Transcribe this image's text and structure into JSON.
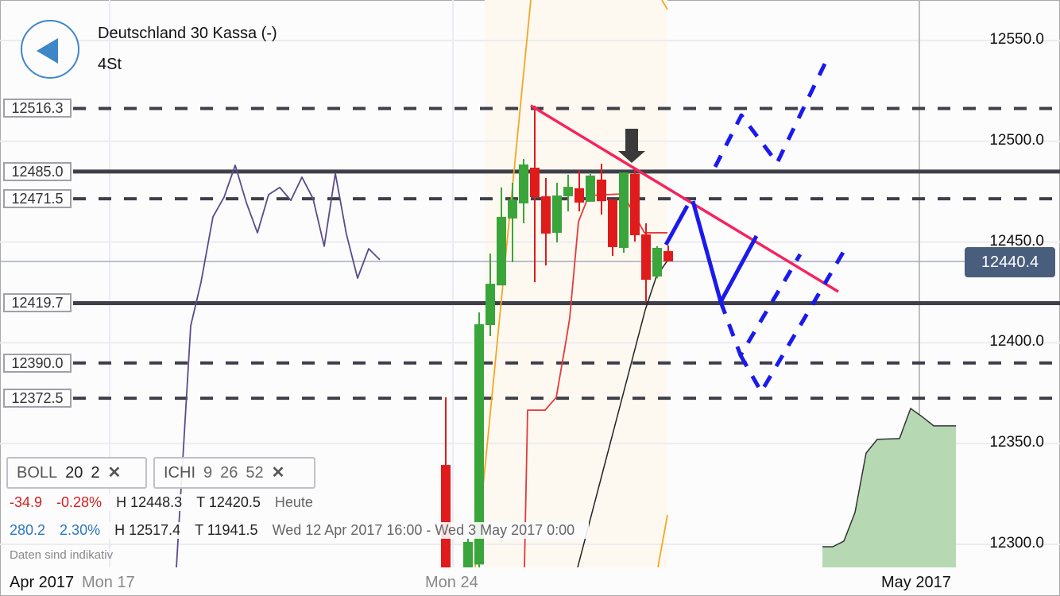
{
  "header": {
    "title": "Deutschland 30 Kassa (-)",
    "timeframe": "4St",
    "back_icon": "back-triangle-icon"
  },
  "colors": {
    "up": "#3aa53a",
    "down": "#e01b1b",
    "trend": "#f5235f",
    "drawing": "#1a1aee",
    "level": "#3f3f4a",
    "boll": "#f5a623",
    "tenkan": "#e5393b",
    "chikou": "#5b4a8a",
    "cloud": "#b6d9b3",
    "price_badge": "#495d7d"
  },
  "chart_data": {
    "type": "candlestick",
    "y_axis": {
      "ticks": [
        "12550.0",
        "12500.0",
        "12450.0",
        "12400.0",
        "12350.0",
        "12300.0"
      ],
      "tick_values": [
        12550,
        12500,
        12450,
        12400,
        12350,
        12300
      ],
      "range": [
        12281,
        12570
      ],
      "grid": true
    },
    "x_axis": {
      "labels": [
        "Apr 2017",
        "Mon 17",
        "Mon 24",
        "May 2017"
      ]
    },
    "current_price": "12440.4",
    "candles": [
      {
        "o": 12339.4,
        "h": 12373.0,
        "l": 12270.0,
        "c": 12280.0
      },
      {
        "o": 12270.0,
        "h": 12303.0,
        "l": 12265.0,
        "c": 12301.2
      },
      {
        "o": 12290.0,
        "h": 12415.1,
        "l": 12285.0,
        "c": 12409.2
      },
      {
        "o": 12408.8,
        "h": 12444.3,
        "l": 12403.3,
        "c": 12429.3
      },
      {
        "o": 12428.5,
        "h": 12477.1,
        "l": 12428.5,
        "c": 12462.5
      },
      {
        "o": 12461.7,
        "h": 12479.4,
        "l": 12440.0,
        "c": 12471.1
      },
      {
        "o": 12469.2,
        "h": 12491.2,
        "l": 12459.3,
        "c": 12488.5
      },
      {
        "o": 12486.9,
        "h": 12517.7,
        "l": 12430.1,
        "c": 12472.3
      },
      {
        "o": 12472.7,
        "h": 12481.8,
        "l": 12438.4,
        "c": 12454.2
      },
      {
        "o": 12454.6,
        "h": 12479.4,
        "l": 12449.8,
        "c": 12473.1
      },
      {
        "o": 12472.7,
        "h": 12483.4,
        "l": 12465.2,
        "c": 12477.4
      },
      {
        "o": 12476.7,
        "h": 12485.7,
        "l": 12465.2,
        "c": 12469.6
      },
      {
        "o": 12470.0,
        "h": 12483.8,
        "l": 12470.0,
        "c": 12483.0
      },
      {
        "o": 12481.0,
        "h": 12488.9,
        "l": 12463.6,
        "c": 12470.3
      },
      {
        "o": 12471.1,
        "h": 12471.1,
        "l": 12443.1,
        "c": 12447.5
      },
      {
        "o": 12447.1,
        "h": 12484.5,
        "l": 12444.7,
        "c": 12484.5
      },
      {
        "o": 12483.8,
        "h": 12485.7,
        "l": 12450.2,
        "c": 12453.4
      },
      {
        "o": 12453.8,
        "h": 12459.3,
        "l": 12420.3,
        "c": 12431.3
      },
      {
        "o": 12432.9,
        "h": 12448.0,
        "l": 12432.0,
        "c": 12447.1
      },
      {
        "o": 12445.5,
        "h": 12448.3,
        "l": 12440.4,
        "c": 12440.4
      }
    ],
    "levels": [
      {
        "label": "12516.3",
        "value": 12516.3,
        "style": "dashed"
      },
      {
        "label": "12485.0",
        "value": 12485.0,
        "style": "solid"
      },
      {
        "label": "12471.5",
        "value": 12471.5,
        "style": "dashed"
      },
      {
        "label": "12419.7",
        "value": 12419.7,
        "style": "solid"
      },
      {
        "label": "12390.0",
        "value": 12390.0,
        "style": "dashed"
      },
      {
        "label": "12372.5",
        "value": 12372.5,
        "style": "dashed"
      }
    ],
    "indicators": {
      "chikou": [
        12288.6,
        12408.4,
        12430.1,
        12462.5,
        12472.3,
        12488.1,
        12469.6,
        12454.6,
        12473.5,
        12477.1,
        12470.7,
        12482.2,
        12471.5,
        12447.9,
        12484.1,
        12453.8,
        12432.1,
        12446.7,
        12441.2
      ],
      "tenkan": [
        12288.6,
        12366.6,
        12366.6,
        12372.9,
        12402.5,
        12412.4,
        12460.1,
        12473.1,
        12473.9,
        12454.6,
        12454.6
      ],
      "kijun": [
        12288.6,
        12416.3,
        12432.9,
        12440.8
      ],
      "boll_upper": [
        12288.6,
        12570.1
      ],
      "boll_lower": [
        12288.6,
        12314.6
      ],
      "boll_upper_right": [
        12570.1,
        12565.4
      ],
      "cloud": [
        12298.8,
        12298.8,
        12301.6,
        12315.8,
        12345.3,
        12352.1,
        12352.5,
        12367.4,
        12363.5,
        12358.8,
        12358.8
      ]
    },
    "drawings": {
      "trendline": [
        12517.7,
        12425.4
      ],
      "solid_1": [
        12448.7,
        12468.0
      ],
      "solid_2": [
        12470.3,
        12420.3,
        12453.0
      ],
      "dashed_up": [
        12487.3,
        12512.9,
        12489.3,
        12541.7
      ],
      "dashed_a": [
        12420.3,
        12393.8,
        12443.9
      ],
      "dashed_b": [
        12393.8,
        12375.7,
        12445.5
      ]
    }
  },
  "indicator_chips": [
    {
      "name": "BOLL",
      "params": [
        "20",
        "2"
      ]
    },
    {
      "name": "ICHI",
      "params": [
        "9",
        "26",
        "52"
      ]
    }
  ],
  "stats": {
    "today": {
      "change": "-34.9",
      "pct": "-0.28%",
      "high": "H 12448.3",
      "low": "T 12420.5",
      "period": "Heute"
    },
    "range": {
      "change": "280.2",
      "pct": "2.30%",
      "high": "H 12517.4",
      "low": "T 11941.5",
      "period": "Wed 12 Apr 2017 16:00 - Wed 3 May 2017 0:00"
    }
  },
  "disclaimer": "Daten sind indikativ"
}
